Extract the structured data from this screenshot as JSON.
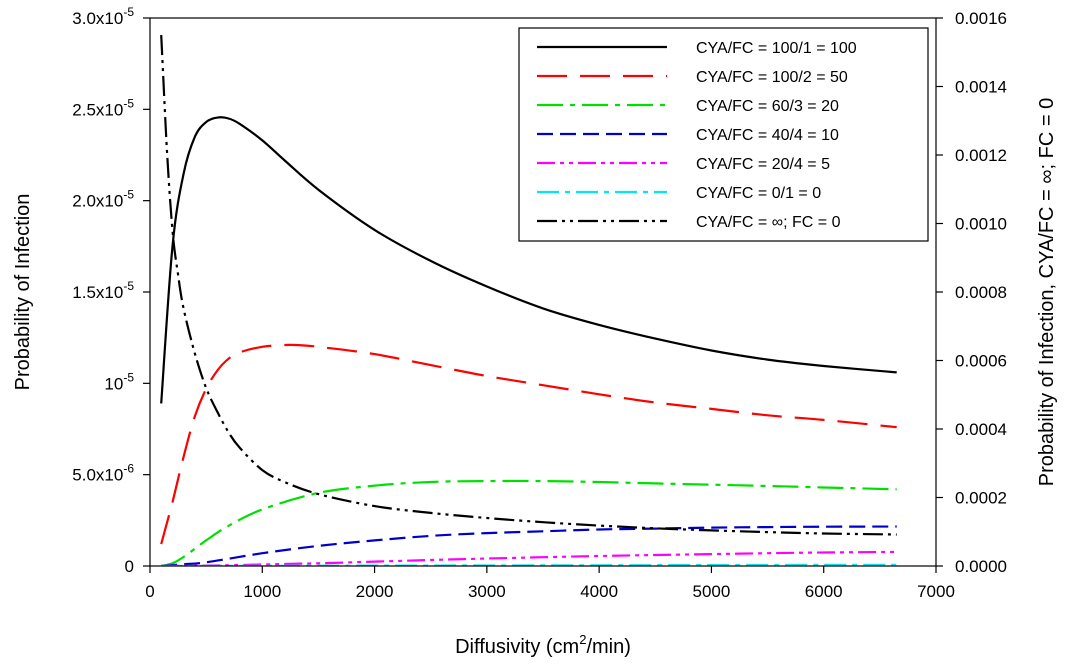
{
  "chart_data": {
    "type": "line",
    "title": "",
    "xlabel": {
      "prefix": "Diffusivity (cm",
      "sup": "2",
      "suffix": "/min)"
    },
    "ylabel": "Probability of Infection",
    "y2label": "Probability of Infection, CYA/FC = ∞; FC = 0",
    "xlim": [
      0,
      7000
    ],
    "ylim": [
      0,
      3e-05
    ],
    "y2lim": [
      0,
      0.0016
    ],
    "grid": false,
    "legend_position": "top-right",
    "x_ticks": [
      {
        "value": 0,
        "label": "0"
      },
      {
        "value": 1000,
        "label": "1000"
      },
      {
        "value": 2000,
        "label": "2000"
      },
      {
        "value": 3000,
        "label": "3000"
      },
      {
        "value": 4000,
        "label": "4000"
      },
      {
        "value": 5000,
        "label": "5000"
      },
      {
        "value": 6000,
        "label": "6000"
      },
      {
        "value": 7000,
        "label": "7000"
      }
    ],
    "y_ticks": [
      {
        "value": 0,
        "mant": "0",
        "exp": ""
      },
      {
        "value": 5e-06,
        "mant": "5.0x10",
        "exp": "-6"
      },
      {
        "value": 1e-05,
        "mant": "10",
        "exp": "-5"
      },
      {
        "value": 1.5e-05,
        "mant": "1.5x10",
        "exp": "-5"
      },
      {
        "value": 2e-05,
        "mant": "2.0x10",
        "exp": "-5"
      },
      {
        "value": 2.5e-05,
        "mant": "2.5x10",
        "exp": "-5"
      },
      {
        "value": 3e-05,
        "mant": "3.0x10",
        "exp": "-5"
      }
    ],
    "y2_ticks": [
      {
        "value": 0.0,
        "label": "0.0000"
      },
      {
        "value": 0.0002,
        "label": "0.0002"
      },
      {
        "value": 0.0004,
        "label": "0.0004"
      },
      {
        "value": 0.0006,
        "label": "0.0006"
      },
      {
        "value": 0.0008,
        "label": "0.0008"
      },
      {
        "value": 0.001,
        "label": "0.0010"
      },
      {
        "value": 0.0012,
        "label": "0.0012"
      },
      {
        "value": 0.0014,
        "label": "0.0014"
      },
      {
        "value": 0.0016,
        "label": "0.0016"
      }
    ],
    "series": [
      {
        "name": "CYA/FC = 100/1 = 100",
        "axis": "left",
        "color": "#000000",
        "dash": "none",
        "x": [
          100,
          200,
          300,
          400,
          500,
          600,
          700,
          800,
          1000,
          1200,
          1500,
          2000,
          2500,
          3000,
          3500,
          4000,
          4500,
          5000,
          5500,
          6000,
          6650
        ],
        "y": [
          8.9e-06,
          1.75e-05,
          2.15e-05,
          2.35e-05,
          2.43e-05,
          2.455e-05,
          2.45e-05,
          2.42e-05,
          2.33e-05,
          2.22e-05,
          2.06e-05,
          1.84e-05,
          1.67e-05,
          1.53e-05,
          1.41e-05,
          1.32e-05,
          1.245e-05,
          1.18e-05,
          1.13e-05,
          1.095e-05,
          1.06e-05
        ]
      },
      {
        "name": "CYA/FC = 100/2 = 50",
        "axis": "left",
        "color": "#ff0000",
        "dash": "30 13",
        "x": [
          100,
          200,
          300,
          400,
          500,
          600,
          700,
          800,
          1000,
          1200,
          1300,
          1500,
          2000,
          2500,
          3000,
          3500,
          4000,
          4500,
          5000,
          5500,
          6000,
          6650
        ],
        "y": [
          1.2e-06,
          3.5e-06,
          6e-06,
          8.2e-06,
          9.7e-06,
          1.07e-05,
          1.135e-05,
          1.17e-05,
          1.2e-05,
          1.21e-05,
          1.21e-05,
          1.2e-05,
          1.16e-05,
          1.1e-05,
          1.04e-05,
          9.9e-06,
          9.4e-06,
          8.95e-06,
          8.6e-06,
          8.25e-06,
          8e-06,
          7.6e-06
        ]
      },
      {
        "name": "CYA/FC = 60/3 = 20",
        "axis": "left",
        "color": "#00e000",
        "dash": "26 7 5 7",
        "x": [
          100,
          200,
          300,
          500,
          700,
          1000,
          1500,
          2000,
          2500,
          3000,
          3500,
          4000,
          4500,
          5000,
          5500,
          6000,
          6650
        ],
        "y": [
          0,
          1.5e-07,
          5e-07,
          1.4e-06,
          2.2e-06,
          3.1e-06,
          4e-06,
          4.4e-06,
          4.6e-06,
          4.65e-06,
          4.65e-06,
          4.6e-06,
          4.52e-06,
          4.45e-06,
          4.38e-06,
          4.3e-06,
          4.2e-06
        ]
      },
      {
        "name": "CYA/FC = 40/4 = 10",
        "axis": "left",
        "color": "#0000c8",
        "dash": "16 7",
        "x": [
          100,
          300,
          500,
          1000,
          1500,
          2000,
          2500,
          3000,
          3500,
          4000,
          4500,
          5000,
          5500,
          6000,
          6650
        ],
        "y": [
          0,
          1e-07,
          2e-07,
          7e-07,
          1.1e-06,
          1.4e-06,
          1.65e-06,
          1.8e-06,
          1.9e-06,
          2e-06,
          2.05e-06,
          2.1e-06,
          2.13e-06,
          2.15e-06,
          2.16e-06
        ]
      },
      {
        "name": "CYA/FC = 20/4 = 5",
        "axis": "left",
        "color": "#ff00ff",
        "dash": "18 5 4 5 4 5",
        "x": [
          100,
          500,
          1000,
          1500,
          2000,
          2500,
          3000,
          3500,
          4000,
          4500,
          5000,
          5500,
          6000,
          6650
        ],
        "y": [
          0,
          2e-08,
          8e-08,
          1.5e-07,
          2.4e-07,
          3.3e-07,
          4.1e-07,
          4.8e-07,
          5.5e-07,
          6e-07,
          6.5e-07,
          7e-07,
          7.4e-07,
          7.7e-07
        ]
      },
      {
        "name": "CYA/FC = 0/1 = 0",
        "axis": "left",
        "color": "#00e8f0",
        "dash": "22 6 5 6",
        "x": [
          100,
          1000,
          2000,
          3000,
          4000,
          5000,
          6000,
          6650
        ],
        "y": [
          0,
          1e-08,
          2e-08,
          3e-08,
          4e-08,
          5e-08,
          6e-08,
          6.5e-08
        ]
      },
      {
        "name": "CYA/FC = ∞; FC = 0",
        "axis": "right",
        "color": "#000000",
        "dash": "20 5 3 5 3 5",
        "x": [
          100,
          150,
          200,
          250,
          300,
          400,
          500,
          600,
          700,
          800,
          1000,
          1200,
          1500,
          2000,
          2500,
          3000,
          3500,
          4000,
          4500,
          5000,
          5500,
          6000,
          6650
        ],
        "y": [
          0.00155,
          0.00122,
          0.00098,
          0.00085,
          0.00075,
          0.00062,
          0.00052,
          0.00045,
          0.00039,
          0.000345,
          0.00028,
          0.000245,
          0.00021,
          0.000175,
          0.000155,
          0.00014,
          0.000128,
          0.000118,
          0.00011,
          0.000104,
          9.9e-05,
          9.5e-05,
          9.2e-05
        ]
      }
    ]
  }
}
